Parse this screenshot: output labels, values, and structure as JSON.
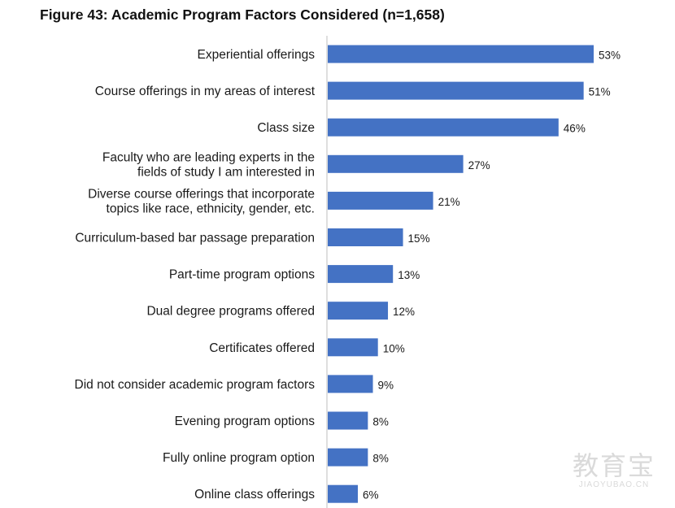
{
  "chart_data": {
    "type": "bar",
    "orientation": "horizontal",
    "title": "Figure 43: Academic Program Factors Considered (n=1,658)",
    "categories": [
      [
        "Experiential offerings"
      ],
      [
        "Course offerings in my areas of interest"
      ],
      [
        "Class size"
      ],
      [
        "Faculty who are leading experts in the",
        "fields of study I am interested in"
      ],
      [
        "Diverse course offerings that incorporate",
        "topics like race, ethnicity, gender, etc."
      ],
      [
        "Curriculum-based bar passage preparation"
      ],
      [
        "Part-time program options"
      ],
      [
        "Dual degree programs offered"
      ],
      [
        "Certificates offered"
      ],
      [
        "Did not consider academic program factors"
      ],
      [
        "Evening program options"
      ],
      [
        "Fully online program option"
      ],
      [
        "Online class offerings"
      ]
    ],
    "values": [
      53,
      51,
      46,
      27,
      21,
      15,
      13,
      12,
      10,
      9,
      8,
      8,
      6
    ],
    "value_labels": [
      "53%",
      "51%",
      "46%",
      "27%",
      "21%",
      "15%",
      "13%",
      "12%",
      "10%",
      "9%",
      "8%",
      "8%",
      "6%"
    ],
    "unit": "%",
    "xlim": [
      0,
      53
    ],
    "grid": false,
    "legend": "none",
    "bar_color": "#4472C4",
    "axis_color": "#bfbfbf"
  },
  "watermark": {
    "cn": "教育宝",
    "en": "JIAOYUBAO.CN"
  }
}
